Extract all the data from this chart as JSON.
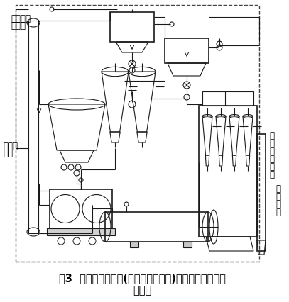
{
  "title_line1": "图3  辊压机和球磨机(带组合式选粉机)组成的联合粉磨系",
  "title_line2": "统流程",
  "label_air": "来自压缩\n空气站",
  "label_feed": "来自配\n料站",
  "label_separator": "组\n合\n式\n选\n粉\n机",
  "label_cement": "入\n水\n泥\n库",
  "bg_color": "#ffffff",
  "diagram_color": "#1a1a1a",
  "title_fontsize": 10.5,
  "label_fontsize": 8.5
}
